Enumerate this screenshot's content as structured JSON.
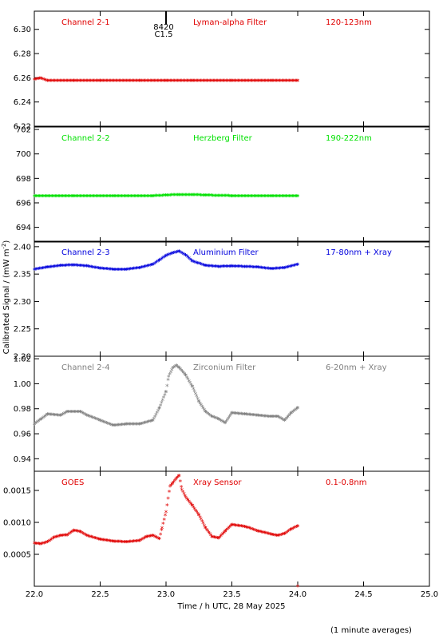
{
  "figure": {
    "y_axis_label": "Calibrated Signal / (mW m",
    "y_axis_label_sup": "-2",
    "y_axis_label_end": ")",
    "x_axis_label": "Time / h UTC, 28 May 2025",
    "footnote": "(1 minute averages)",
    "flare_marker": {
      "label_top": "8420",
      "label_bottom": "C1.5",
      "time": 23.0
    }
  },
  "colors": {
    "channel_2_1": "#e00000",
    "channel_2_2": "#00e000",
    "channel_2_3": "#0000dd",
    "channel_2_4": "#7f7f7f",
    "goes": "#e00000",
    "axes": "#000000"
  },
  "chart_data": [
    {
      "type": "scatter",
      "labels": [
        "Channel 2-1",
        "Lyman-alpha Filter",
        "120-123nm"
      ],
      "ylim": [
        6.22,
        6.315
      ],
      "yticks": [
        6.22,
        6.24,
        6.26,
        6.28,
        6.3
      ],
      "xlim": [
        22.0,
        25.0
      ],
      "series": [
        {
          "x": [
            22.0,
            22.05,
            22.1,
            22.3,
            22.5,
            22.8,
            23.0,
            23.2,
            23.5,
            23.8,
            24.0
          ],
          "y": [
            6.258,
            6.259,
            6.257,
            6.257,
            6.257,
            6.257,
            6.257,
            6.257,
            6.257,
            6.257,
            6.257
          ]
        }
      ]
    },
    {
      "type": "scatter",
      "labels": [
        "Channel 2-2",
        "Herzberg Filter",
        "190-222nm"
      ],
      "ylim": [
        692.8,
        702.2
      ],
      "yticks": [
        694,
        696,
        698,
        700,
        702
      ],
      "xlim": [
        22.0,
        25.0
      ],
      "series": [
        {
          "x": [
            22.0,
            22.3,
            22.6,
            22.9,
            23.0,
            23.1,
            23.2,
            23.3,
            23.5,
            23.8,
            24.0
          ],
          "y": [
            696.5,
            696.5,
            696.5,
            696.5,
            696.55,
            696.6,
            696.6,
            696.55,
            696.5,
            696.5,
            696.5
          ]
        }
      ]
    },
    {
      "type": "scatter",
      "labels": [
        "Channel 2-3",
        "Aluminium Filter",
        "17-80nm + Xray"
      ],
      "ylim": [
        2.2,
        2.41
      ],
      "yticks": [
        2.2,
        2.25,
        2.3,
        2.35,
        2.4
      ],
      "xlim": [
        22.0,
        25.0
      ],
      "series": [
        {
          "x": [
            22.0,
            22.1,
            22.2,
            22.3,
            22.4,
            22.5,
            22.6,
            22.7,
            22.8,
            22.9,
            22.95,
            23.0,
            23.05,
            23.1,
            23.15,
            23.2,
            23.3,
            23.4,
            23.5,
            23.6,
            23.7,
            23.8,
            23.9,
            24.0
          ],
          "y": [
            2.357,
            2.361,
            2.364,
            2.365,
            2.363,
            2.359,
            2.357,
            2.357,
            2.36,
            2.366,
            2.374,
            2.382,
            2.387,
            2.39,
            2.383,
            2.372,
            2.364,
            2.362,
            2.363,
            2.362,
            2.361,
            2.358,
            2.36,
            2.366
          ]
        }
      ]
    },
    {
      "type": "scatter",
      "labels": [
        "Channel 2-4",
        "Zirconium Filter",
        "6-20nm + Xray"
      ],
      "ylim": [
        0.93,
        1.022
      ],
      "yticks": [
        0.94,
        0.96,
        0.98,
        1.0,
        1.02
      ],
      "xlim": [
        22.0,
        25.0
      ],
      "series": [
        {
          "x": [
            22.0,
            22.05,
            22.1,
            22.2,
            22.25,
            22.35,
            22.4,
            22.5,
            22.6,
            22.7,
            22.8,
            22.9,
            22.95,
            23.0,
            23.02,
            23.05,
            23.08,
            23.1,
            23.15,
            23.2,
            23.25,
            23.3,
            23.35,
            23.4,
            23.45,
            23.5,
            23.6,
            23.7,
            23.8,
            23.85,
            23.9,
            23.95,
            24.0
          ],
          "y": [
            0.967,
            0.971,
            0.975,
            0.974,
            0.977,
            0.977,
            0.974,
            0.97,
            0.966,
            0.967,
            0.967,
            0.97,
            0.98,
            0.993,
            1.005,
            1.012,
            1.014,
            1.012,
            1.006,
            0.997,
            0.985,
            0.977,
            0.973,
            0.971,
            0.968,
            0.976,
            0.975,
            0.974,
            0.973,
            0.973,
            0.97,
            0.976,
            0.98
          ]
        }
      ]
    },
    {
      "type": "scatter",
      "labels": [
        "GOES",
        "Xray Sensor",
        "0.1-0.8nm"
      ],
      "ylim": [
        0.0,
        0.0018
      ],
      "yticks": [
        0.0005,
        0.001,
        0.0015
      ],
      "ytick_labels": [
        "0.0005",
        "0.0010",
        "0.0015"
      ],
      "xlim": [
        22.0,
        25.0
      ],
      "series": [
        {
          "x": [
            22.0,
            22.05,
            22.1,
            22.15,
            22.2,
            22.25,
            22.3,
            22.35,
            22.4,
            22.5,
            22.6,
            22.7,
            22.8,
            22.85,
            22.9,
            22.95,
            22.97,
            23.0,
            23.03,
            23.05,
            23.08,
            23.1,
            23.12,
            23.15,
            23.2,
            23.25,
            23.3,
            23.35,
            23.4,
            23.45,
            23.5,
            23.6,
            23.7,
            23.8,
            23.85,
            23.9,
            23.95,
            24.0
          ],
          "y": [
            0.00066,
            0.00065,
            0.00068,
            0.00075,
            0.00078,
            0.00079,
            0.00086,
            0.00084,
            0.00078,
            0.00072,
            0.00069,
            0.00068,
            0.0007,
            0.00076,
            0.00078,
            0.00073,
            0.0009,
            0.00115,
            0.00155,
            0.0016,
            0.00168,
            0.00172,
            0.0015,
            0.00138,
            0.00125,
            0.0011,
            0.0009,
            0.00076,
            0.00074,
            0.00085,
            0.00095,
            0.00092,
            0.00085,
            0.0008,
            0.00078,
            0.00081,
            0.00088,
            0.00093
          ]
        }
      ]
    }
  ],
  "x_axis": {
    "ticks": [
      22.0,
      22.5,
      23.0,
      23.5,
      24.0,
      24.5,
      25.0
    ],
    "tick_labels": [
      "22.0",
      "22.5",
      "23.0",
      "23.5",
      "24.0",
      "24.5",
      "25.0"
    ]
  }
}
